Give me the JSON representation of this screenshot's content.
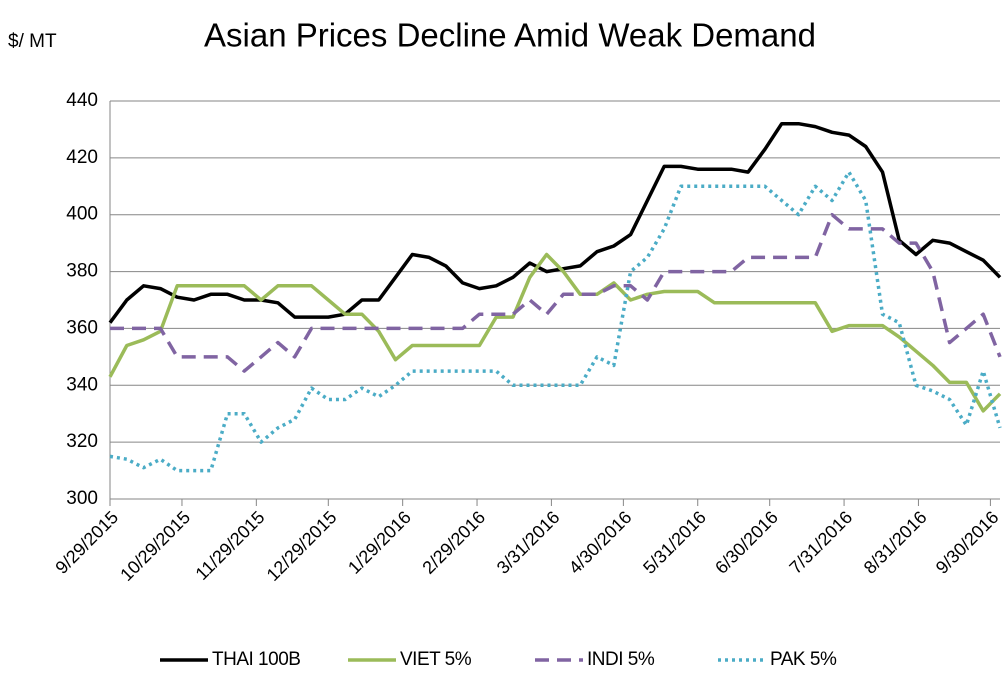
{
  "chart_data": {
    "type": "line",
    "title": "Asian Prices Decline Amid Weak Demand",
    "y_label": "$/ MT",
    "x": [
      "9/29/2015",
      "10/6/2015",
      "10/13/2015",
      "10/20/2015",
      "10/27/2015",
      "11/3/2015",
      "11/10/2015",
      "11/17/2015",
      "11/24/2015",
      "12/1/2015",
      "12/8/2015",
      "12/15/2015",
      "12/22/2015",
      "12/29/2015",
      "1/5/2016",
      "1/12/2016",
      "1/19/2016",
      "1/26/2016",
      "2/2/2016",
      "2/9/2016",
      "2/16/2016",
      "2/23/2016",
      "3/1/2016",
      "3/8/2016",
      "3/15/2016",
      "3/22/2016",
      "3/29/2016",
      "4/5/2016",
      "4/12/2016",
      "4/19/2016",
      "4/26/2016",
      "5/3/2016",
      "5/10/2016",
      "5/17/2016",
      "5/24/2016",
      "5/31/2016",
      "6/7/2016",
      "6/14/2016",
      "6/21/2016",
      "6/28/2016",
      "7/5/2016",
      "7/12/2016",
      "7/19/2016",
      "7/26/2016",
      "8/2/2016",
      "8/9/2016",
      "8/16/2016",
      "8/23/2016",
      "8/30/2016",
      "9/6/2016",
      "9/13/2016",
      "9/20/2016",
      "9/27/2016",
      "10/4/2016"
    ],
    "series": [
      {
        "name": "THAI 100B",
        "color": "#000000",
        "dash": "solid",
        "values": [
          362,
          370,
          375,
          374,
          371,
          370,
          372,
          372,
          370,
          370,
          369,
          364,
          364,
          364,
          365,
          370,
          370,
          378,
          386,
          385,
          382,
          376,
          374,
          375,
          378,
          383,
          380,
          381,
          382,
          387,
          389,
          393,
          405,
          417,
          417,
          416,
          416,
          416,
          415,
          423,
          432,
          432,
          431,
          429,
          428,
          424,
          415,
          391,
          386,
          391,
          390,
          387,
          384,
          378
        ]
      },
      {
        "name": "VIET 5%",
        "color": "#9bbb59",
        "dash": "solid",
        "values": [
          343,
          354,
          356,
          359,
          375,
          375,
          375,
          375,
          375,
          370,
          375,
          375,
          375,
          370,
          365,
          365,
          359,
          349,
          354,
          354,
          354,
          354,
          354,
          364,
          364,
          378,
          386,
          380,
          372,
          372,
          376,
          370,
          372,
          373,
          373,
          373,
          369,
          369,
          369,
          369,
          369,
          369,
          369,
          359,
          361,
          361,
          361,
          357,
          352,
          347,
          341,
          341,
          331,
          337
        ]
      },
      {
        "name": "INDI 5%",
        "color": "#8064a2",
        "dash": "dashed",
        "values": [
          360,
          360,
          360,
          360,
          350,
          350,
          350,
          350,
          345,
          350,
          355,
          350,
          360,
          360,
          360,
          360,
          360,
          360,
          360,
          360,
          360,
          360,
          365,
          365,
          365,
          370,
          365,
          372,
          372,
          372,
          375,
          375,
          370,
          380,
          380,
          380,
          380,
          380,
          385,
          385,
          385,
          385,
          385,
          400,
          395,
          395,
          395,
          390,
          390,
          380,
          355,
          360,
          365,
          350
        ]
      },
      {
        "name": "PAK 5%",
        "color": "#4bacc6",
        "dash": "dotted",
        "values": [
          315,
          314,
          311,
          314,
          310,
          310,
          310,
          330,
          330,
          320,
          325,
          328,
          339,
          335,
          335,
          339,
          336,
          340,
          345,
          345,
          345,
          345,
          345,
          345,
          340,
          340,
          340,
          340,
          340,
          350,
          347,
          380,
          385,
          395,
          410,
          410,
          410,
          410,
          410,
          410,
          405,
          400,
          410,
          405,
          415,
          405,
          365,
          362,
          340,
          338,
          335,
          326,
          345,
          325
        ]
      }
    ],
    "xlim": [
      "9/29/2015",
      "10/4/2016"
    ],
    "xticks": [
      "9/29/2015",
      "10/29/2015",
      "11/29/2015",
      "12/29/2015",
      "1/29/2016",
      "2/29/2016",
      "3/31/2016",
      "4/30/2016",
      "5/31/2016",
      "6/30/2016",
      "7/31/2016",
      "8/31/2016",
      "9/30/2016"
    ],
    "ylim": [
      300,
      440
    ],
    "yticks": [
      300,
      320,
      340,
      360,
      380,
      400,
      420,
      440
    ],
    "grid": true,
    "legend": "bottom"
  }
}
